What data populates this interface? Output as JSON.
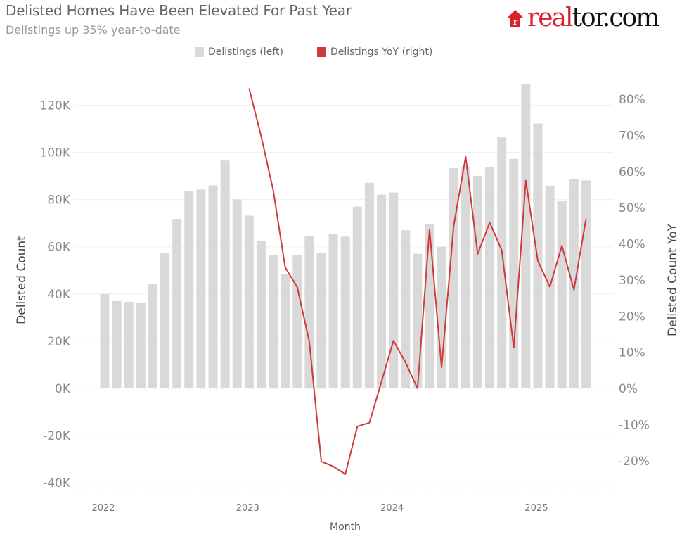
{
  "header": {
    "title": "Delisted Homes Have Been Elevated For Past Year",
    "subtitle": "Delistings up 35% year-to-date",
    "logo_text_red": "real",
    "logo_text_black": "tor.com"
  },
  "chart_data": {
    "type": "bar+line",
    "title": "Delisted Homes Have Been Elevated For Past Year",
    "subtitle": "Delistings up 35% year-to-date",
    "xlabel": "Month",
    "ylabel_left": "Delisted Count",
    "ylabel_right": "Delisted Count YoY",
    "x_ticks": [
      "2022",
      "2023",
      "2024",
      "2025"
    ],
    "y_left_ticks": [
      "-40K",
      "-20K",
      "0K",
      "20K",
      "40K",
      "60K",
      "80K",
      "100K",
      "120K"
    ],
    "y_left_tick_values": [
      -40,
      -20,
      0,
      20,
      40,
      60,
      80,
      100,
      120
    ],
    "y_right_ticks": [
      "-20%",
      "-10%",
      "0%",
      "10%",
      "20%",
      "30%",
      "40%",
      "50%",
      "60%",
      "70%",
      "80%"
    ],
    "y_right_tick_values": [
      -20,
      -10,
      0,
      10,
      20,
      30,
      40,
      50,
      60,
      70,
      80
    ],
    "legend_position": "top",
    "grid": true,
    "months": [
      "2022-01",
      "2022-02",
      "2022-03",
      "2022-04",
      "2022-05",
      "2022-06",
      "2022-07",
      "2022-08",
      "2022-09",
      "2022-10",
      "2022-11",
      "2022-12",
      "2023-01",
      "2023-02",
      "2023-03",
      "2023-04",
      "2023-05",
      "2023-06",
      "2023-07",
      "2023-08",
      "2023-09",
      "2023-10",
      "2023-11",
      "2023-12",
      "2024-01",
      "2024-02",
      "2024-03",
      "2024-04",
      "2024-05",
      "2024-06",
      "2024-07",
      "2024-08",
      "2024-09",
      "2024-10",
      "2024-11",
      "2024-12",
      "2025-01",
      "2025-02",
      "2025-03",
      "2025-04",
      "2025-05"
    ],
    "series": [
      {
        "name": "Delistings (left)",
        "type": "bar",
        "axis": "left",
        "unit": "K",
        "color": "#d9d9d9",
        "values": [
          40.0,
          37.0,
          36.7,
          36.2,
          44.2,
          57.3,
          71.8,
          83.6,
          84.2,
          86.0,
          96.5,
          80.1,
          73.2,
          62.6,
          56.6,
          48.4,
          56.6,
          64.6,
          57.3,
          65.5,
          64.3,
          77.0,
          87.1,
          82.1,
          83.0,
          67.0,
          57.0,
          69.6,
          59.9,
          93.3,
          94.0,
          90.0,
          93.6,
          106.4,
          97.2,
          129.1,
          112.2,
          85.9,
          79.4,
          88.6,
          88.1
        ]
      },
      {
        "name": "Delistings YoY (right)",
        "type": "line",
        "axis": "right",
        "unit": "%",
        "color": "#d03a3a",
        "values": [
          null,
          null,
          null,
          null,
          null,
          null,
          null,
          null,
          null,
          null,
          null,
          null,
          83.0,
          69.8,
          54.9,
          33.5,
          28.0,
          13.0,
          -20.2,
          -21.6,
          -23.7,
          -10.5,
          -9.5,
          1.8,
          13.2,
          7.2,
          0.0,
          44.0,
          5.8,
          44.8,
          64.1,
          37.2,
          45.9,
          38.2,
          11.3,
          57.5,
          35.3,
          28.1,
          39.5,
          27.3,
          46.8
        ]
      }
    ]
  }
}
